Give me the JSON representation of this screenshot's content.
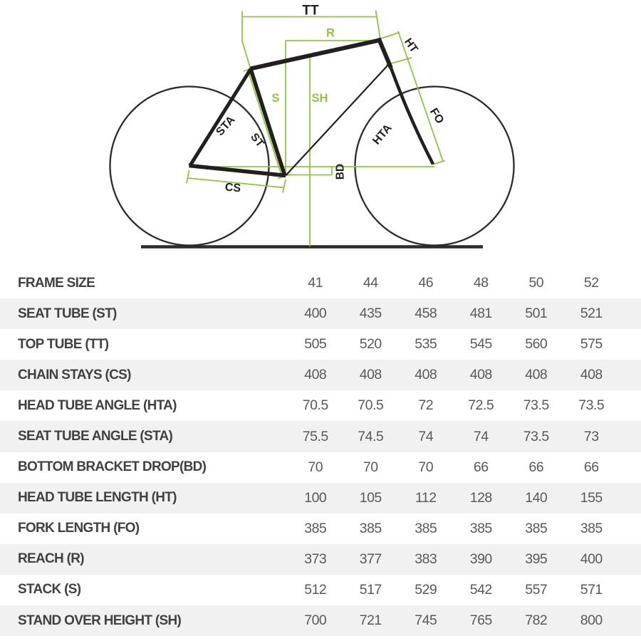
{
  "diagram": {
    "type": "bike-frame-geometry-diagram",
    "colors": {
      "accent_green": "#8DC63F",
      "frame_black": "#231F20",
      "wheel_black": "#2B2B2B",
      "ground_black": "#2B2B2B"
    },
    "labels": {
      "tt": "TT",
      "r": "R",
      "ht": "HT",
      "s": "S",
      "sh": "SH",
      "sta": "STA",
      "st": "ST",
      "hta": "HTA",
      "fo": "FO",
      "bd": "BD",
      "cs": "CS"
    }
  },
  "table": {
    "row_stripe_color": "#f1f1f2",
    "rows": [
      {
        "label": "FRAME SIZE",
        "values": [
          "41",
          "44",
          "46",
          "48",
          "50",
          "52"
        ]
      },
      {
        "label": "SEAT TUBE (ST)",
        "values": [
          "400",
          "435",
          "458",
          "481",
          "501",
          "521"
        ]
      },
      {
        "label": "TOP TUBE (TT)",
        "values": [
          "505",
          "520",
          "535",
          "545",
          "560",
          "575"
        ]
      },
      {
        "label": "CHAIN STAYS (CS)",
        "values": [
          "408",
          "408",
          "408",
          "408",
          "408",
          "408"
        ]
      },
      {
        "label": "HEAD TUBE ANGLE (HTA)",
        "values": [
          "70.5",
          "70.5",
          "72",
          "72.5",
          "73.5",
          "73.5"
        ]
      },
      {
        "label": "SEAT TUBE ANGLE (STA)",
        "values": [
          "75.5",
          "74.5",
          "74",
          "74",
          "73.5",
          "73"
        ]
      },
      {
        "label": "BOTTOM BRACKET DROP(BD)",
        "values": [
          "70",
          "70",
          "70",
          "66",
          "66",
          "66"
        ]
      },
      {
        "label": "HEAD TUBE LENGTH (HT)",
        "values": [
          "100",
          "105",
          "112",
          "128",
          "140",
          "155"
        ]
      },
      {
        "label": "FORK LENGTH (FO)",
        "values": [
          "385",
          "385",
          "385",
          "385",
          "385",
          "385"
        ]
      },
      {
        "label": "REACH (R)",
        "values": [
          "373",
          "377",
          "383",
          "390",
          "395",
          "400"
        ]
      },
      {
        "label": "STACK (S)",
        "values": [
          "512",
          "517",
          "529",
          "542",
          "557",
          "571"
        ]
      },
      {
        "label": "STAND OVER HEIGHT (SH)",
        "values": [
          "700",
          "721",
          "745",
          "765",
          "782",
          "800"
        ]
      }
    ]
  }
}
